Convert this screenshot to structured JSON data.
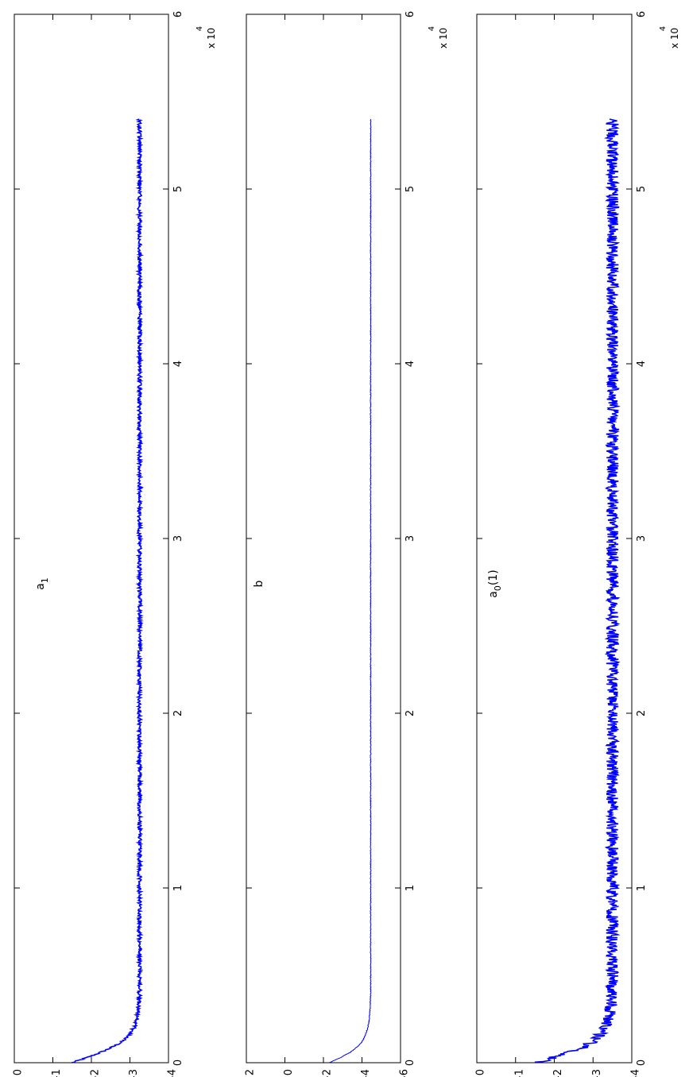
{
  "line_color": "#0000ff",
  "chart_data": [
    {
      "type": "line",
      "annotation": "a_1",
      "x_multiplier": "x 10",
      "x_multiplier_exponent": "4",
      "xlim": [
        0,
        60000
      ],
      "ylim": [
        -4,
        0
      ],
      "xticks": [
        0,
        1,
        2,
        3,
        4,
        5,
        6
      ],
      "yticks": [
        "0",
        "-1",
        "-2",
        "-3",
        "-4"
      ],
      "y_values_at_ticks": [
        0,
        -1,
        -2,
        -3,
        -4
      ],
      "noise": 0.05,
      "series": [
        {
          "x": [
            0,
            300,
            600,
            900,
            1200,
            1500,
            2000,
            2500,
            3000,
            4000,
            5000,
            7000,
            10000,
            15000,
            20000,
            25000,
            30000,
            35000,
            40000,
            45000,
            50000,
            54000
          ],
          "y": [
            -1.5,
            -1.9,
            -2.25,
            -2.55,
            -2.8,
            -2.95,
            -3.1,
            -3.18,
            -3.22,
            -3.25,
            -3.25,
            -3.25,
            -3.25,
            -3.25,
            -3.25,
            -3.25,
            -3.25,
            -3.25,
            -3.25,
            -3.25,
            -3.25,
            -3.25
          ]
        }
      ]
    },
    {
      "type": "line",
      "annotation": "b",
      "x_multiplier": "x 10",
      "x_multiplier_exponent": "4",
      "xlim": [
        0,
        60000
      ],
      "ylim": [
        -6,
        2
      ],
      "xticks": [
        0,
        1,
        2,
        3,
        4,
        5,
        6
      ],
      "yticks": [
        "2",
        "0",
        "-2",
        "-4",
        "-6"
      ],
      "y_values_at_ticks": [
        2,
        0,
        -2,
        -4,
        -6
      ],
      "noise": 0.02,
      "series": [
        {
          "x": [
            0,
            300,
            600,
            900,
            1200,
            1500,
            2000,
            2500,
            3000,
            4000,
            5000,
            7000,
            10000,
            15000,
            20000,
            25000,
            30000,
            35000,
            40000,
            45000,
            50000,
            54000
          ],
          "y": [
            -2.3,
            -2.9,
            -3.4,
            -3.75,
            -4.0,
            -4.15,
            -4.3,
            -4.38,
            -4.42,
            -4.45,
            -4.45,
            -4.45,
            -4.45,
            -4.45,
            -4.45,
            -4.45,
            -4.45,
            -4.45,
            -4.45,
            -4.45,
            -4.45,
            -4.45
          ]
        }
      ]
    },
    {
      "type": "line",
      "annotation": "a_0(1)",
      "x_multiplier": "x 10",
      "x_multiplier_exponent": "4",
      "xlim": [
        0,
        60000
      ],
      "ylim": [
        -4,
        0
      ],
      "xticks": [
        0,
        1,
        2,
        3,
        4,
        5,
        6
      ],
      "yticks": [
        "0",
        "-1",
        "-2",
        "-3",
        "-4"
      ],
      "y_values_at_ticks": [
        0,
        -1,
        -2,
        -3,
        -4
      ],
      "noise": 0.16,
      "series": [
        {
          "x": [
            0,
            300,
            600,
            900,
            1200,
            1500,
            2000,
            2500,
            3000,
            4000,
            5000,
            7000,
            10000,
            15000,
            20000,
            25000,
            30000,
            35000,
            40000,
            45000,
            50000,
            54000
          ],
          "y": [
            -1.6,
            -2.0,
            -2.4,
            -2.75,
            -3.0,
            -3.15,
            -3.3,
            -3.4,
            -3.45,
            -3.48,
            -3.5,
            -3.5,
            -3.5,
            -3.5,
            -3.5,
            -3.5,
            -3.5,
            -3.5,
            -3.5,
            -3.5,
            -3.5,
            -3.5
          ]
        }
      ]
    }
  ]
}
